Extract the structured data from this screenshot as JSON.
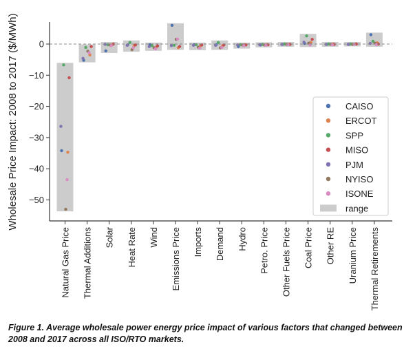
{
  "chart_data": {
    "type": "scatter",
    "ylabel": "Wholesale Price Impact: 2008 to 2017 ($/MWh)",
    "ylim": [
      -55,
      7
    ],
    "yticks": [
      0,
      -10,
      -20,
      -30,
      -40,
      -50
    ],
    "zero_line": "dashed",
    "categories": [
      "Natural Gas Price",
      "Thermal Additions",
      "Solar",
      "Heat Rate",
      "Wind",
      "Emissions Price",
      "Imports",
      "Demand",
      "Hydro",
      "Petro. Price",
      "Other Fuels Price",
      "Coal Price",
      "Other RE",
      "Uranium Price",
      "Thermal Retirements"
    ],
    "series": [
      {
        "name": "CAISO",
        "color": "#4c72b0",
        "values": [
          -34.2,
          -5.2,
          -2.2,
          -0.2,
          -0.2,
          6,
          -0.2,
          -0.2,
          -0.8,
          -0.3,
          -0.1,
          0.2,
          -0.1,
          -0.1,
          3
        ]
      },
      {
        "name": "ERCOT",
        "color": "#dd8452",
        "values": [
          -34.7,
          -3.5,
          -0.3,
          -0.5,
          -1,
          -1.2,
          -0.6,
          -0.6,
          -0.2,
          -0.2,
          -0.1,
          0.5,
          0,
          0,
          0.4
        ]
      },
      {
        "name": "SPP",
        "color": "#55a868",
        "values": [
          -6.7,
          -1.1,
          -0.2,
          0.5,
          -0.5,
          -0.4,
          -0.2,
          0.5,
          -0.2,
          -0.1,
          0,
          2.6,
          0,
          0,
          0.9
        ]
      },
      {
        "name": "MISO",
        "color": "#c44e52",
        "values": [
          -10.8,
          -0.8,
          0,
          -0.3,
          -0.6,
          -0.8,
          -0.3,
          -0.3,
          -0.3,
          -0.2,
          -0.1,
          1.5,
          -0.1,
          0,
          0
        ]
      },
      {
        "name": "PJM",
        "color": "#8172b3",
        "values": [
          -26.4,
          -4.6,
          -0.1,
          -0.4,
          -0.8,
          -0.5,
          -0.4,
          -0.4,
          -0.3,
          -0.2,
          -0.1,
          0.6,
          -0.1,
          -0.1,
          0.2
        ]
      },
      {
        "name": "NYISO",
        "color": "#937860",
        "values": [
          -53,
          -2.3,
          -0.3,
          -1.8,
          -1.2,
          1.5,
          -1,
          -1.2,
          -0.3,
          -0.3,
          -0.1,
          0.3,
          -0.1,
          -0.1,
          0.3
        ]
      },
      {
        "name": "ISONE",
        "color": "#da8bc3",
        "values": [
          -43.5,
          -2.8,
          -0.5,
          -1.2,
          -1.5,
          1.6,
          -1.3,
          -1.1,
          -0.5,
          -0.4,
          -0.2,
          -0.3,
          -0.2,
          -0.1,
          -0.2
        ]
      }
    ],
    "range_legend_label": "range",
    "range_color": "#cccccc",
    "legend_position": "lower-right"
  },
  "caption": "Figure 1. Average wholesale power energy price impact of various factors that changed between 2008 and 2017 across all ISO/RTO markets."
}
